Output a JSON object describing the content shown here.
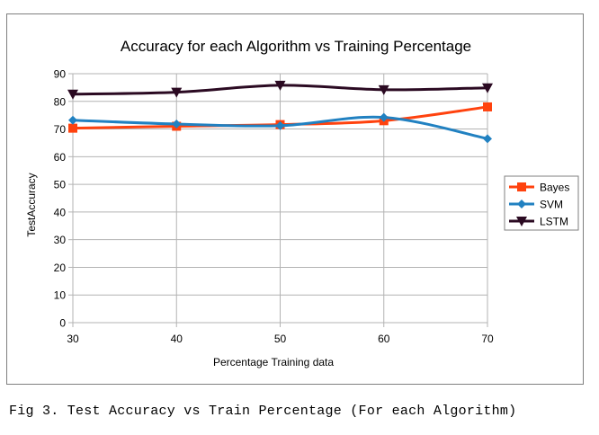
{
  "chart_data": {
    "type": "line",
    "title": "Accuracy for each Algorithm vs Training Percentage",
    "xlabel": "Percentage Training data",
    "ylabel": "TestAccuracy",
    "x": [
      30,
      40,
      50,
      60,
      70
    ],
    "x_ticks": [
      "30",
      "40",
      "50",
      "60",
      "70"
    ],
    "y_ticks": [
      "0",
      "10",
      "20",
      "30",
      "40",
      "50",
      "60",
      "70",
      "80",
      "90"
    ],
    "ylim": [
      0,
      90
    ],
    "grid": "horizontal",
    "legend_position": "right",
    "smooth": true,
    "series": [
      {
        "name": "Bayes",
        "values": [
          70.3,
          71.0,
          71.6,
          73.0,
          78.0
        ],
        "color": "#ff420e",
        "marker": "square"
      },
      {
        "name": "SVM",
        "values": [
          73.2,
          71.8,
          71.2,
          74.2,
          66.5
        ],
        "color": "#2181c1",
        "marker": "diamond"
      },
      {
        "name": "LSTM",
        "values": [
          82.6,
          83.3,
          85.8,
          84.2,
          84.9
        ],
        "color": "#2b0a22",
        "marker": "triangle-down"
      }
    ]
  },
  "caption": "Fig 3. Test Accuracy vs Train Percentage (For each Algorithm)"
}
